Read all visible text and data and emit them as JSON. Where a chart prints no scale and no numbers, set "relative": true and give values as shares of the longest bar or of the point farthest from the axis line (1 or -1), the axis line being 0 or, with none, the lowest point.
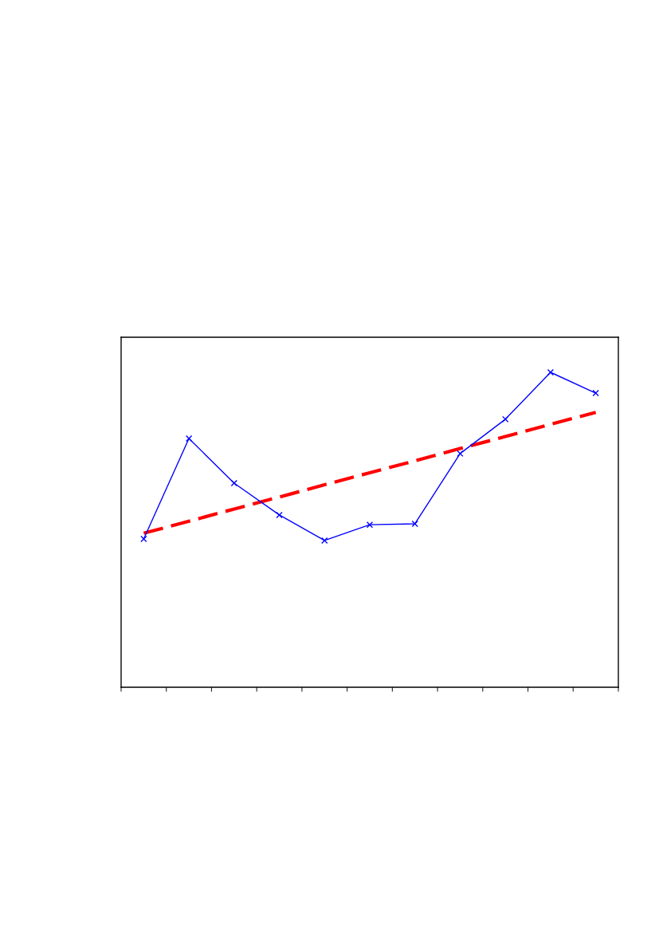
{
  "chart_data": {
    "type": "line",
    "relative": true,
    "categories": [
      null,
      null,
      null,
      null,
      null,
      null,
      null,
      null,
      null,
      null,
      null
    ],
    "series": [
      {
        "color": "#0000ff",
        "marker": "cross",
        "line_style": "solid",
        "values": [
          0.471,
          0.79,
          0.648,
          0.547,
          0.466,
          0.516,
          0.519,
          0.742,
          0.851,
          1,
          0.934
        ]
      },
      {
        "color": "#ff0000",
        "marker": "none",
        "line_style": "dashed",
        "values": [
          0.489,
          0.527,
          0.566,
          0.604,
          0.643,
          0.681,
          0.719,
          0.758,
          0.796,
          0.835,
          0.873
        ]
      }
    ],
    "grid": false,
    "legend": false
  }
}
